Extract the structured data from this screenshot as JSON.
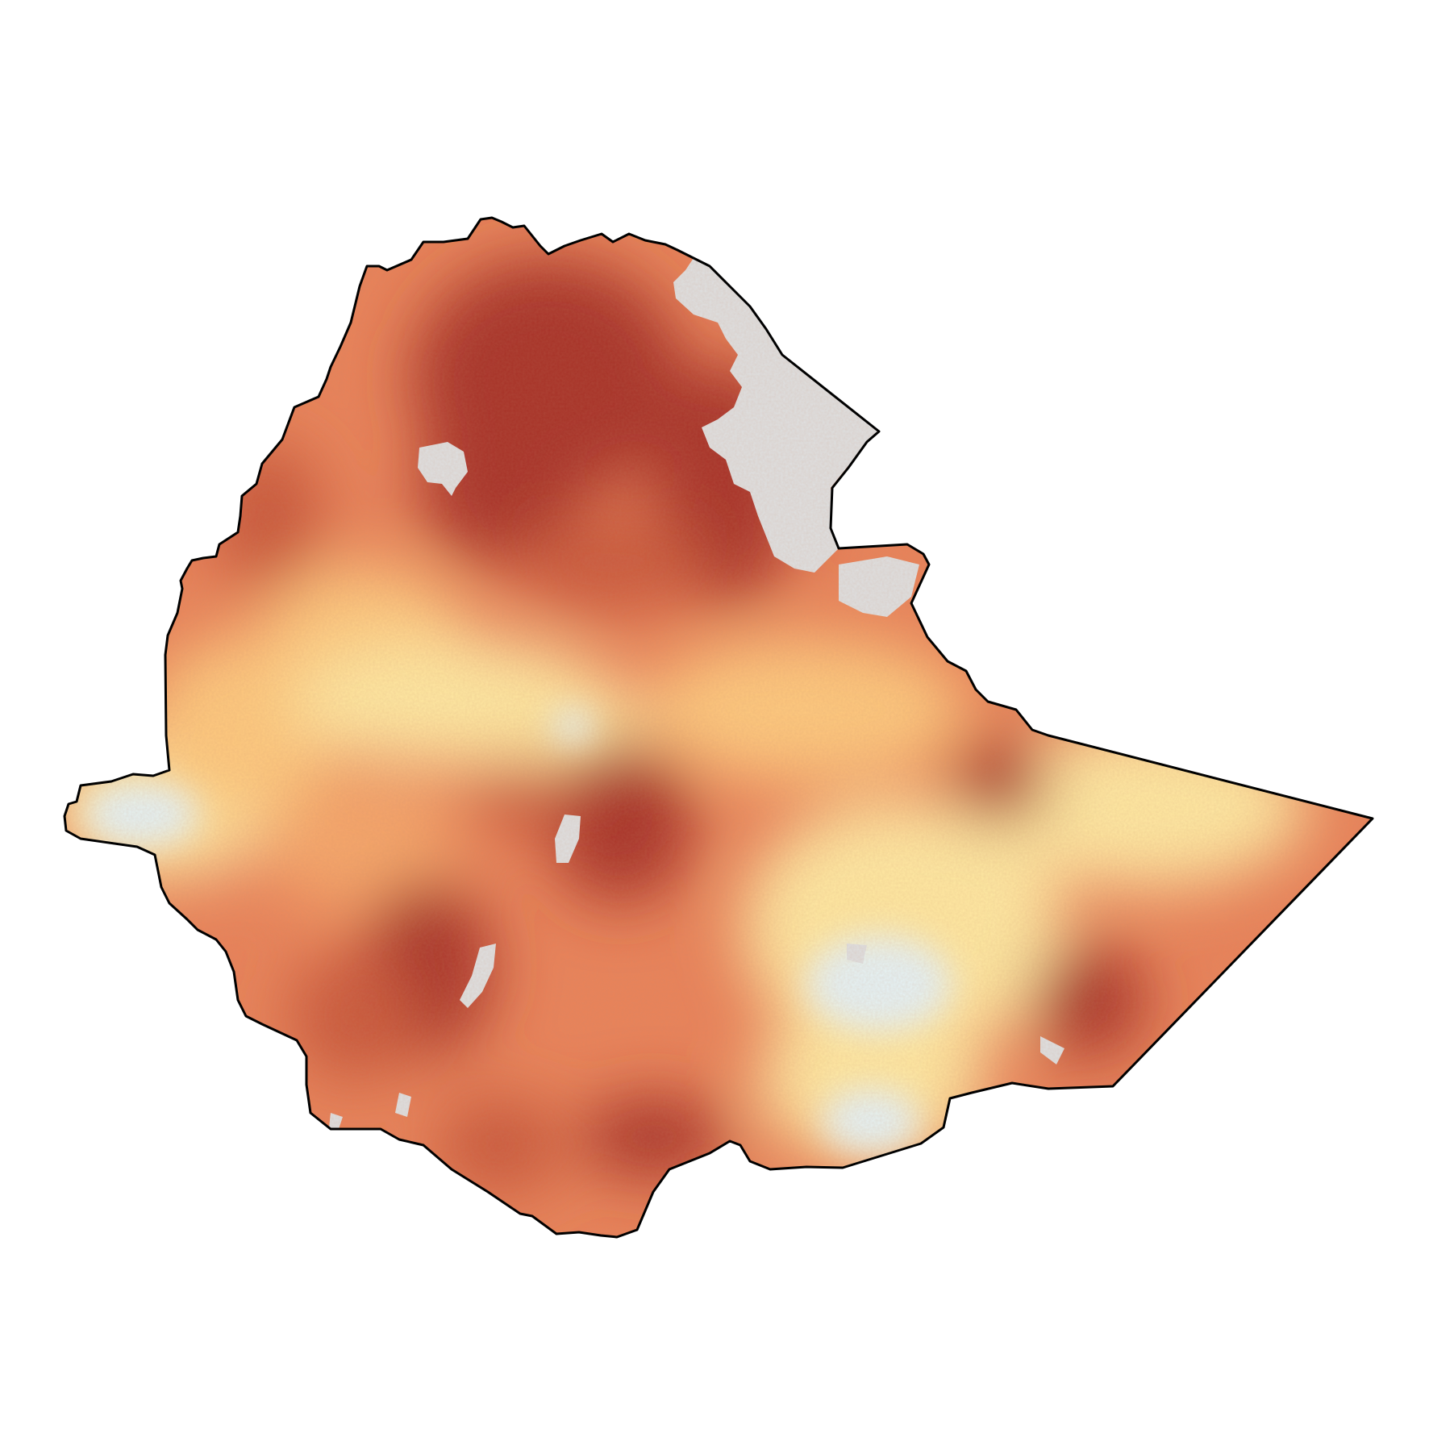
{
  "map": {
    "type": "choropleth-raster",
    "country": "",
    "palette": {
      "very_high": "#a8342a",
      "high": "#c95a3c",
      "mid_high": "#e8835a",
      "mid": "#f4a66a",
      "mid_low": "#fcc77e",
      "low": "#fde6a0",
      "very_low": "#e4f0f2",
      "no_data": "#dedede",
      "boundary": "#000000",
      "background": "#ffffff"
    },
    "legend": null,
    "title": ""
  }
}
